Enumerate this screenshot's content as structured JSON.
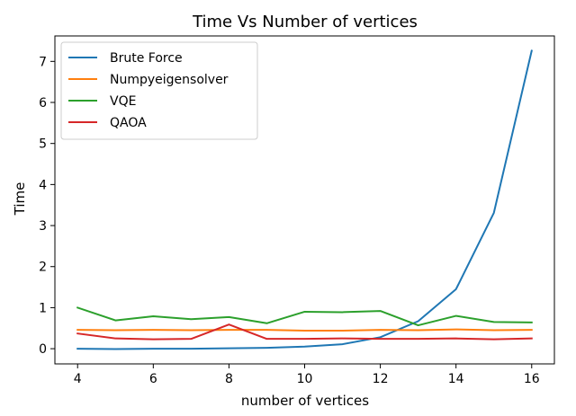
{
  "chart_data": {
    "type": "line",
    "title": "Time Vs Number of vertices",
    "xlabel": "number of vertices",
    "ylabel": "Time",
    "xlim": [
      3.4,
      16.6
    ],
    "ylim": [
      -0.37,
      7.62
    ],
    "xticks": [
      4,
      6,
      8,
      10,
      12,
      14,
      16
    ],
    "yticks": [
      0,
      1,
      2,
      3,
      4,
      5,
      6,
      7
    ],
    "grid": false,
    "legend_position": "upper-left",
    "x": [
      4,
      5,
      6,
      7,
      8,
      9,
      10,
      11,
      12,
      13,
      14,
      15,
      16
    ],
    "series": [
      {
        "name": "Brute Force",
        "color": "#1f77b4",
        "values": [
          0.0,
          -0.01,
          0.0,
          0.0,
          0.01,
          0.02,
          0.05,
          0.11,
          0.28,
          0.67,
          1.45,
          3.31,
          7.26
        ]
      },
      {
        "name": "Numpyeigensolver",
        "color": "#ff7f0e",
        "values": [
          0.46,
          0.45,
          0.46,
          0.45,
          0.46,
          0.46,
          0.44,
          0.44,
          0.46,
          0.45,
          0.47,
          0.45,
          0.46
        ]
      },
      {
        "name": "VQE",
        "color": "#2ca02c",
        "values": [
          1.0,
          0.69,
          0.79,
          0.72,
          0.77,
          0.62,
          0.9,
          0.89,
          0.92,
          0.57,
          0.8,
          0.65,
          0.64
        ]
      },
      {
        "name": "QAOA",
        "color": "#d62728",
        "values": [
          0.37,
          0.25,
          0.23,
          0.24,
          0.59,
          0.24,
          0.24,
          0.25,
          0.24,
          0.24,
          0.25,
          0.23,
          0.25
        ]
      }
    ]
  }
}
